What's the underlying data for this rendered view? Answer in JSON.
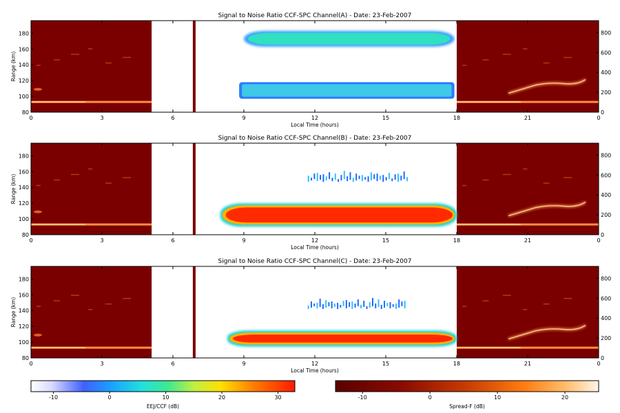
{
  "chart_data": [
    {
      "type": "heatmap",
      "title": "Signal to Noise Ratio CCF-SPC Channel(A) - Date: 23-Feb-2007",
      "xlabel": "Local Time (hours)",
      "ylabel": "Range (km)",
      "x_ticks": [
        "0",
        "3",
        "6",
        "9",
        "12",
        "15",
        "18",
        "21",
        "0"
      ],
      "y_ticks": [
        "80",
        "100",
        "120",
        "140",
        "160",
        "180"
      ],
      "y2_ticks": [
        "0",
        "200",
        "400",
        "600",
        "800"
      ],
      "xlim": [
        0,
        24
      ],
      "ylim": [
        80,
        196
      ],
      "y2lim": [
        0,
        920
      ],
      "spreadf_segments": [
        [
          0,
          5.1
        ],
        [
          18,
          24
        ]
      ],
      "data_gap": [
        5.1,
        6.8
      ],
      "ccf_window": [
        6.9,
        18
      ],
      "ccf_layers": [
        {
          "t_start": 9.0,
          "t_end": 17.9,
          "range_low": 163,
          "range_high": 183,
          "snr_db": 6
        },
        {
          "t_start": 8.8,
          "t_end": 17.9,
          "range_low": 97,
          "range_high": 118,
          "snr_db": 2
        }
      ]
    },
    {
      "type": "heatmap",
      "title": "Signal to Noise Ratio CCF-SPC Channel(B) - Date: 23-Feb-2007",
      "xlabel": "Local Time (hours)",
      "ylabel": "Range (km)",
      "x_ticks": [
        "0",
        "3",
        "6",
        "9",
        "12",
        "15",
        "18",
        "21",
        "0"
      ],
      "y_ticks": [
        "80",
        "100",
        "120",
        "140",
        "160",
        "180"
      ],
      "y2_ticks": [
        "0",
        "200",
        "400",
        "600",
        "800"
      ],
      "xlim": [
        0,
        24
      ],
      "ylim": [
        80,
        196
      ],
      "y2lim": [
        0,
        920
      ],
      "spreadf_segments": [
        [
          0,
          5.1
        ],
        [
          18,
          24
        ]
      ],
      "data_gap": [
        5.1,
        6.8
      ],
      "ccf_window": [
        6.9,
        18
      ],
      "ccf_layers": [
        {
          "t_start": 8.0,
          "t_end": 18.0,
          "range_low": 92,
          "range_high": 118,
          "snr_db": 28
        },
        {
          "t_start": 11.7,
          "t_end": 16.0,
          "range_low": 147,
          "range_high": 160,
          "snr_db": 0
        }
      ]
    },
    {
      "type": "heatmap",
      "title": "Signal to Noise Ratio CCF-SPC Channel(C) - Date: 23-Feb-2007",
      "xlabel": "Local Time (hours)",
      "ylabel": "Range (km)",
      "x_ticks": [
        "0",
        "3",
        "6",
        "9",
        "12",
        "15",
        "18",
        "21",
        "0"
      ],
      "y_ticks": [
        "80",
        "100",
        "120",
        "140",
        "160",
        "180"
      ],
      "y2_ticks": [
        "0",
        "200",
        "400",
        "600",
        "800"
      ],
      "xlim": [
        0,
        24
      ],
      "ylim": [
        80,
        196
      ],
      "y2lim": [
        0,
        920
      ],
      "spreadf_segments": [
        [
          0,
          5.1
        ],
        [
          18,
          24
        ]
      ],
      "data_gap": [
        5.1,
        6.8
      ],
      "ccf_window": [
        6.9,
        18
      ],
      "ccf_layers": [
        {
          "t_start": 8.3,
          "t_end": 18.0,
          "range_low": 96,
          "range_high": 113,
          "snr_db": 28
        },
        {
          "t_start": 11.7,
          "t_end": 15.9,
          "range_low": 142,
          "range_high": 157,
          "snr_db": 0
        }
      ]
    }
  ],
  "colorbars": [
    {
      "label": "EEJ/CCF (dB)",
      "ticks": [
        "-10",
        "0",
        "10",
        "20",
        "30"
      ],
      "range": [
        -14,
        33
      ]
    },
    {
      "label": "Spread-F (dB)",
      "ticks": [
        "-10",
        "0",
        "10",
        "20"
      ],
      "range": [
        -14,
        25
      ]
    }
  ],
  "colors": {
    "spreadf_background": "#7a0000",
    "ccf_cold": "#1e6bff",
    "ccf_mid": "#30e0c0",
    "ccf_hot": "#ff2a00",
    "echo_bright": "#ffe4a0"
  }
}
